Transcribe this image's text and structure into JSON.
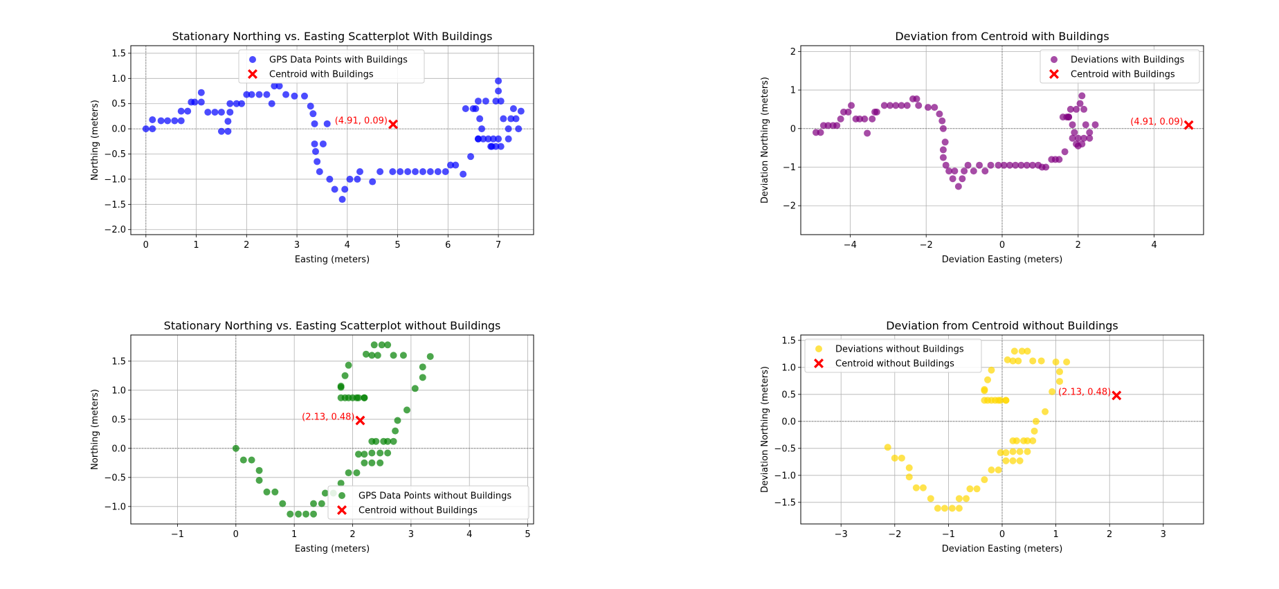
{
  "chart_data": [
    {
      "type": "scatter",
      "title": "Stationary Northing vs. Easting Scatterplot With Buildings",
      "xlabel": "Easting (meters)",
      "ylabel": "Northing (meters)",
      "xlim": [
        -0.3,
        7.7
      ],
      "ylim": [
        -2.1,
        1.65
      ],
      "xticks": [
        0,
        1,
        2,
        3,
        4,
        5,
        6,
        7
      ],
      "yticks": [
        -2.0,
        -1.5,
        -1.0,
        -0.5,
        0.0,
        0.5,
        1.0,
        1.5
      ],
      "grid": true,
      "legend": "top-center",
      "colors": {
        "points": "#0000ff",
        "centroid": "#ff0000"
      },
      "series": [
        {
          "name": "GPS Data Points with  Buildings",
          "kind": "points",
          "x": [
            0.0,
            0.13,
            0.13,
            0.3,
            0.43,
            0.57,
            0.7,
            0.7,
            0.83,
            0.9,
            0.97,
            1.1,
            1.1,
            1.23,
            1.37,
            1.5,
            1.5,
            1.63,
            1.63,
            1.67,
            1.67,
            1.8,
            1.9,
            2.0,
            2.1,
            2.25,
            2.4,
            2.5,
            2.55,
            2.65,
            2.78,
            2.95,
            3.15,
            3.27,
            3.32,
            3.35,
            3.35,
            3.37,
            3.4,
            3.45,
            3.52,
            3.6,
            3.65,
            3.75,
            3.9,
            3.95,
            4.05,
            4.2,
            4.25,
            4.5,
            4.65,
            4.9,
            5.05,
            5.2,
            5.35,
            5.5,
            5.65,
            5.8,
            5.95,
            6.05,
            6.15,
            6.3,
            6.35,
            6.45,
            6.5,
            6.55,
            6.6,
            6.63,
            6.67,
            6.75,
            6.87,
            6.95,
            7.0,
            7.0,
            7.05,
            7.1,
            7.2,
            7.25,
            7.3,
            7.35,
            7.4,
            7.45,
            6.6,
            6.6,
            6.7,
            6.8,
            6.9,
            7.0,
            7.2,
            6.85,
            6.95,
            7.05
          ],
          "y": [
            0.0,
            0.0,
            0.18,
            0.16,
            0.16,
            0.16,
            0.16,
            0.35,
            0.35,
            0.53,
            0.53,
            0.53,
            0.72,
            0.33,
            0.33,
            0.33,
            -0.05,
            -0.05,
            0.15,
            0.33,
            0.5,
            0.5,
            0.5,
            0.68,
            0.68,
            0.68,
            0.68,
            0.5,
            0.85,
            0.85,
            0.68,
            0.65,
            0.65,
            0.45,
            0.3,
            0.1,
            -0.3,
            -0.45,
            -0.65,
            -0.85,
            -0.3,
            0.1,
            -1.0,
            -1.2,
            -1.4,
            -1.2,
            -1.0,
            -1.0,
            -0.85,
            -1.05,
            -0.85,
            -0.85,
            -0.85,
            -0.85,
            -0.85,
            -0.85,
            -0.85,
            -0.85,
            -0.85,
            -0.72,
            -0.72,
            -0.9,
            0.4,
            -0.55,
            0.4,
            0.4,
            0.55,
            0.2,
            0.0,
            0.55,
            -0.35,
            0.55,
            0.75,
            0.95,
            0.55,
            0.2,
            0.0,
            0.2,
            0.4,
            0.2,
            0.0,
            0.35,
            -0.2,
            -0.2,
            -0.2,
            -0.2,
            -0.2,
            -0.2,
            -0.2,
            -0.35,
            -0.35,
            -0.35
          ]
        },
        {
          "name": "Centroid with Buildings",
          "kind": "centroid",
          "x": [
            4.91
          ],
          "y": [
            0.09
          ]
        }
      ],
      "annotations": [
        {
          "text": "(4.91, 0.09)",
          "x": 4.91,
          "y": 0.09
        }
      ]
    },
    {
      "type": "scatter",
      "title": "Deviation from Centroid with Buildings",
      "xlabel": "Deviation Easting (meters)",
      "ylabel": "Deviation Northing (meters)",
      "xlim": [
        -5.3,
        5.3
      ],
      "ylim": [
        -2.75,
        2.15
      ],
      "xticks": [
        -4,
        -2,
        0,
        2,
        4
      ],
      "yticks": [
        -2,
        -1,
        0,
        1,
        2
      ],
      "grid": true,
      "legend": "top-right",
      "colors": {
        "points": "#800080",
        "centroid": "#ff0000"
      },
      "series": [
        {
          "name": "Deviations with Buildings",
          "kind": "points",
          "x": [
            -4.9,
            -4.78,
            -4.7,
            -4.58,
            -4.45,
            -4.35,
            -4.25,
            -4.17,
            -4.05,
            -3.97,
            -3.85,
            -3.75,
            -3.62,
            -3.55,
            -3.42,
            -3.35,
            -3.3,
            -3.1,
            -2.95,
            -2.8,
            -2.65,
            -2.5,
            -2.35,
            -2.25,
            -2.2,
            -1.95,
            -1.78,
            -1.65,
            -1.58,
            -1.55,
            -1.5,
            -1.55,
            -1.55,
            -1.48,
            -1.4,
            -1.3,
            -1.25,
            -1.15,
            -1.05,
            -1.0,
            -0.9,
            -0.75,
            -0.6,
            -0.45,
            -0.3,
            -0.1,
            0.05,
            0.2,
            0.35,
            0.5,
            0.65,
            0.8,
            0.95,
            1.05,
            1.15,
            1.3,
            1.4,
            1.5,
            1.6,
            1.65,
            1.7,
            1.75,
            1.8,
            1.85,
            1.9,
            1.95,
            2.0,
            2.05,
            2.1,
            2.15,
            2.2,
            2.3,
            2.45,
            1.75,
            1.85,
            2.0,
            2.15,
            2.3,
            1.95,
            2.1
          ],
          "y": [
            -0.1,
            -0.1,
            0.08,
            0.08,
            0.08,
            0.08,
            0.25,
            0.43,
            0.43,
            0.6,
            0.25,
            0.25,
            0.25,
            -0.12,
            0.25,
            0.43,
            0.43,
            0.6,
            0.6,
            0.6,
            0.6,
            0.6,
            0.77,
            0.77,
            0.6,
            0.55,
            0.55,
            0.38,
            0.2,
            0.0,
            -0.35,
            -0.55,
            -0.75,
            -0.95,
            -1.1,
            -1.3,
            -1.1,
            -1.5,
            -1.3,
            -1.1,
            -0.95,
            -1.1,
            -0.95,
            -1.1,
            -0.95,
            -0.95,
            -0.95,
            -0.95,
            -0.95,
            -0.95,
            -0.95,
            -0.95,
            -0.95,
            -1.0,
            -1.0,
            -0.8,
            -0.8,
            -0.8,
            0.3,
            -0.6,
            0.3,
            0.3,
            0.5,
            0.1,
            -0.1,
            0.5,
            -0.45,
            0.65,
            0.85,
            0.5,
            0.1,
            -0.1,
            0.1,
            0.3,
            -0.25,
            -0.25,
            -0.25,
            -0.25,
            -0.4,
            -0.4
          ]
        },
        {
          "name": "Centroid with Buildings",
          "kind": "centroid",
          "x": [
            4.91
          ],
          "y": [
            0.09
          ]
        }
      ],
      "annotations": [
        {
          "text": "(4.91, 0.09)",
          "x": 4.91,
          "y": 0.09
        }
      ]
    },
    {
      "type": "scatter",
      "title": "Stationary Northing vs. Easting Scatterplot without Buildings",
      "xlabel": "Easting (meters)",
      "ylabel": "Northing (meters)",
      "xlim": [
        -1.8,
        5.1
      ],
      "ylim": [
        -1.3,
        1.95
      ],
      "xticks": [
        -1,
        0,
        1,
        2,
        3,
        4,
        5
      ],
      "yticks": [
        -1.0,
        -0.5,
        0.0,
        0.5,
        1.0,
        1.5
      ],
      "grid": true,
      "legend": "bottom-right",
      "colors": {
        "points": "#008000",
        "centroid": "#ff0000"
      },
      "series": [
        {
          "name": "GPS Data Points without Buildings",
          "kind": "points",
          "x": [
            0.0,
            0.13,
            0.27,
            0.4,
            0.4,
            0.53,
            0.67,
            0.8,
            0.93,
            1.07,
            1.2,
            1.33,
            1.33,
            1.47,
            1.53,
            1.67,
            1.8,
            1.93,
            2.07,
            2.1,
            2.2,
            2.23,
            2.33,
            2.37,
            2.43,
            2.5,
            2.6,
            2.7,
            2.73,
            2.77,
            2.87,
            2.93,
            3.07,
            3.2,
            3.2,
            3.33,
            1.8,
            1.8,
            1.87,
            1.93,
            2.0,
            2.1,
            2.2,
            1.8,
            1.87,
            1.93,
            2.07,
            2.2,
            2.33,
            2.4,
            2.53,
            2.6,
            2.7,
            2.33,
            2.47,
            2.6,
            2.2,
            2.33,
            2.47
          ],
          "y": [
            0.0,
            -0.2,
            -0.2,
            -0.38,
            -0.55,
            -0.75,
            -0.75,
            -0.95,
            -1.13,
            -1.13,
            -1.13,
            -1.13,
            -0.95,
            -0.95,
            -0.77,
            -0.77,
            -0.6,
            -0.42,
            -0.42,
            -0.1,
            -0.1,
            1.62,
            1.6,
            1.78,
            1.6,
            1.78,
            1.78,
            1.6,
            0.3,
            0.48,
            1.6,
            0.66,
            1.03,
            1.22,
            1.4,
            1.58,
            0.87,
            1.07,
            1.25,
            1.43,
            0.87,
            0.87,
            0.87,
            1.05,
            0.87,
            0.87,
            0.87,
            0.87,
            0.12,
            0.12,
            0.12,
            0.12,
            0.12,
            -0.08,
            -0.08,
            -0.08,
            -0.25,
            -0.25,
            -0.25
          ]
        },
        {
          "name": "Centroid without Buildings",
          "kind": "centroid",
          "x": [
            2.13
          ],
          "y": [
            0.48
          ]
        }
      ],
      "annotations": [
        {
          "text": "(2.13, 0.48)",
          "x": 2.13,
          "y": 0.48
        }
      ]
    },
    {
      "type": "scatter",
      "title": "Deviation from Centroid without Buildings",
      "xlabel": "Deviation Easting (meters)",
      "ylabel": "Deviation Northing (meters)",
      "xlim": [
        -3.75,
        3.75
      ],
      "ylim": [
        -1.9,
        1.6
      ],
      "xticks": [
        -3,
        -2,
        -1,
        0,
        1,
        2,
        3
      ],
      "yticks": [
        -1.5,
        -1.0,
        -0.5,
        0.0,
        0.5,
        1.0,
        1.5
      ],
      "grid": true,
      "legend": "top-left",
      "colors": {
        "points": "#ffd700",
        "centroid": "#ff0000"
      },
      "series": [
        {
          "name": "Deviations without Buildings",
          "kind": "points",
          "x": [
            -2.13,
            -2.0,
            -1.87,
            -1.73,
            -1.73,
            -1.6,
            -1.47,
            -1.33,
            -1.2,
            -1.07,
            -0.93,
            -0.8,
            -0.8,
            -0.67,
            -0.6,
            -0.47,
            -0.33,
            -0.2,
            -0.07,
            -0.03,
            0.07,
            0.1,
            0.2,
            0.23,
            0.3,
            0.37,
            0.47,
            0.57,
            0.6,
            0.63,
            0.73,
            0.8,
            0.93,
            1.07,
            1.07,
            1.2,
            -0.33,
            -0.33,
            -0.27,
            -0.2,
            -0.13,
            -0.03,
            0.07,
            -0.33,
            -0.27,
            -0.2,
            -0.07,
            0.07,
            0.2,
            0.27,
            0.4,
            0.47,
            0.57,
            0.2,
            0.33,
            0.47,
            0.07,
            0.2,
            0.33,
            1.0
          ],
          "y": [
            -0.48,
            -0.68,
            -0.68,
            -0.86,
            -1.03,
            -1.23,
            -1.23,
            -1.43,
            -1.61,
            -1.61,
            -1.61,
            -1.61,
            -1.43,
            -1.43,
            -1.25,
            -1.25,
            -1.08,
            -0.9,
            -0.9,
            -0.58,
            -0.58,
            1.14,
            1.12,
            1.3,
            1.12,
            1.3,
            1.3,
            1.12,
            -0.18,
            0.0,
            1.12,
            0.18,
            0.55,
            0.74,
            0.92,
            1.1,
            0.39,
            0.59,
            0.77,
            0.95,
            0.39,
            0.39,
            0.39,
            0.57,
            0.39,
            0.39,
            0.39,
            0.39,
            -0.36,
            -0.36,
            -0.36,
            -0.36,
            -0.36,
            -0.56,
            -0.56,
            -0.56,
            -0.73,
            -0.73,
            -0.73,
            1.1
          ]
        },
        {
          "name": "Centroid without Buildings",
          "kind": "centroid",
          "x": [
            2.13
          ],
          "y": [
            0.48
          ]
        }
      ],
      "annotations": [
        {
          "text": "(2.13, 0.48)",
          "x": 2.13,
          "y": 0.48
        }
      ]
    }
  ]
}
